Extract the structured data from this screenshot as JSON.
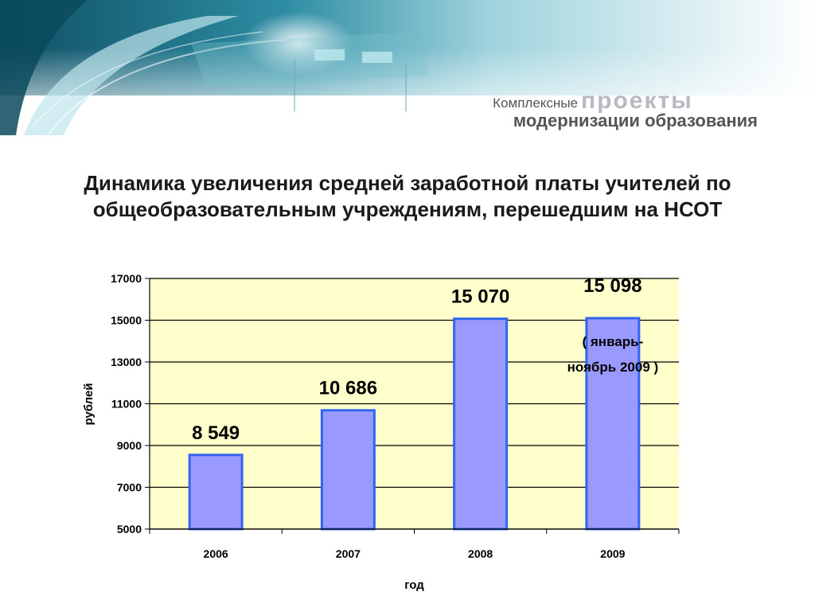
{
  "header": {
    "logo_line1_small": "Комплексные",
    "logo_line1_big": "проекты",
    "logo_line2": "модернизации образования"
  },
  "slide": {
    "title_line1": "Динамика увеличения средней заработной платы учителей по",
    "title_line2": "общеобразовательным учреждениям, перешедшим на НСОТ"
  },
  "colors": {
    "plot_background": "#FFFFCC",
    "bar_fill": "#9999FF",
    "bar_border": "#3366EE",
    "gridline": "#000000",
    "header_teal": "#1E6E82"
  },
  "chart_data": {
    "type": "bar",
    "categories": [
      "2006",
      "2007",
      "2008",
      "2009"
    ],
    "values": [
      8549,
      10686,
      15070,
      15098
    ],
    "data_labels": [
      "8 549",
      "10 686",
      "15 070",
      "15 098"
    ],
    "annotation_line1": "( январь-",
    "annotation_line2": "ноябрь 2009 )",
    "xlabel": "год",
    "ylabel": "рублей",
    "ylim": [
      5000,
      17000
    ],
    "yticks": [
      "5000",
      "7000",
      "9000",
      "11000",
      "13000",
      "15000",
      "17000"
    ],
    "grid": true,
    "legend": "none"
  }
}
